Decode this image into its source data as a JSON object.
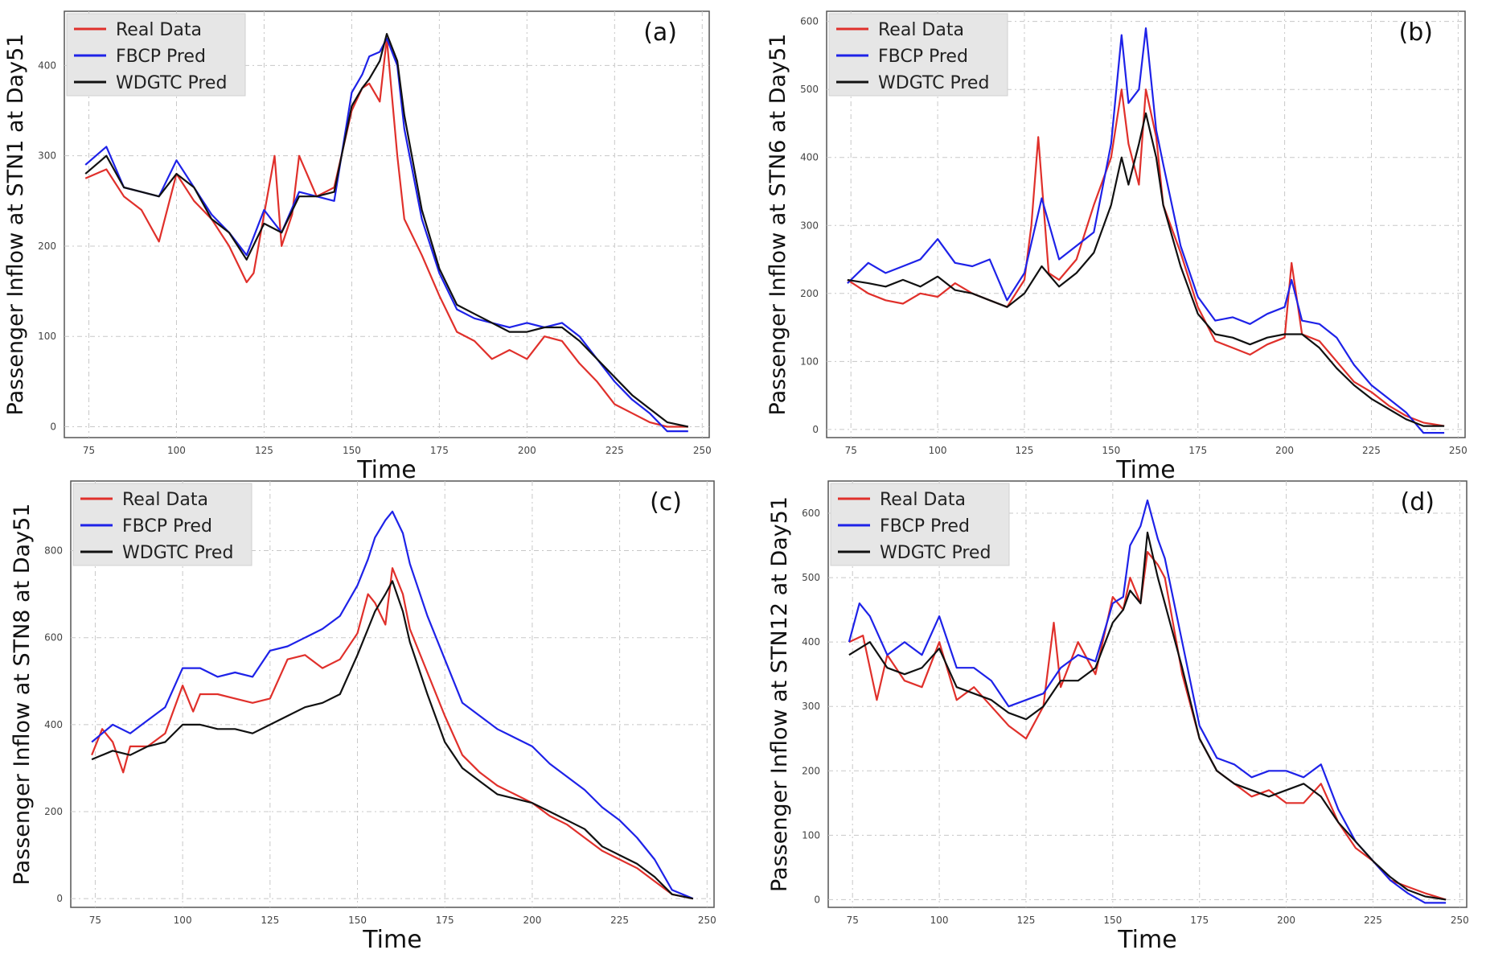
{
  "colors": {
    "real": "#e0302b",
    "fbcp": "#1e22e8",
    "wdgtc": "#111111",
    "grid": "#c8c8c8",
    "legend_bg": "#e6e6e6"
  },
  "chart_data": [
    {
      "type": "line",
      "panel_label": "(a)",
      "xlabel": "Time",
      "ylabel": "Passenger Inflow at STN1 at Day51",
      "xlim": [
        68,
        252
      ],
      "ylim": [
        -12,
        460
      ],
      "xticks": [
        75,
        100,
        125,
        150,
        175,
        200,
        225,
        250
      ],
      "yticks": [
        0,
        100,
        200,
        300,
        400
      ],
      "legend": [
        "Real Data",
        "FBCP Pred",
        "WDGTC Pred"
      ],
      "series": [
        {
          "name": "Real Data",
          "color_key": "real",
          "x": [
            74,
            80,
            85,
            90,
            95,
            100,
            105,
            110,
            115,
            120,
            122,
            125,
            128,
            130,
            133,
            135,
            140,
            145,
            150,
            153,
            155,
            158,
            160,
            163,
            165,
            170,
            175,
            180,
            185,
            190,
            195,
            200,
            205,
            210,
            215,
            220,
            225,
            230,
            235,
            240,
            246
          ],
          "y": [
            275,
            285,
            255,
            240,
            205,
            280,
            250,
            230,
            200,
            160,
            170,
            235,
            300,
            200,
            235,
            300,
            255,
            265,
            350,
            375,
            380,
            360,
            430,
            300,
            230,
            190,
            145,
            105,
            95,
            75,
            85,
            75,
            100,
            95,
            70,
            50,
            25,
            15,
            5,
            0,
            0
          ]
        },
        {
          "name": "FBCP Pred",
          "color_key": "fbcp",
          "x": [
            74,
            80,
            85,
            90,
            95,
            100,
            105,
            110,
            115,
            120,
            125,
            130,
            135,
            140,
            145,
            150,
            153,
            155,
            158,
            160,
            163,
            165,
            170,
            175,
            180,
            185,
            190,
            195,
            200,
            205,
            210,
            215,
            220,
            225,
            230,
            235,
            240,
            246
          ],
          "y": [
            290,
            310,
            265,
            260,
            255,
            295,
            265,
            235,
            215,
            190,
            240,
            215,
            260,
            255,
            250,
            370,
            390,
            410,
            415,
            430,
            400,
            330,
            230,
            170,
            130,
            120,
            115,
            110,
            115,
            110,
            115,
            100,
            75,
            50,
            30,
            15,
            -5,
            -5
          ]
        },
        {
          "name": "WDGTC Pred",
          "color_key": "wdgtc",
          "x": [
            74,
            80,
            85,
            90,
            95,
            100,
            105,
            110,
            115,
            120,
            125,
            130,
            135,
            140,
            145,
            150,
            153,
            155,
            158,
            160,
            163,
            165,
            170,
            175,
            180,
            185,
            190,
            195,
            200,
            205,
            210,
            215,
            220,
            225,
            230,
            235,
            240,
            246
          ],
          "y": [
            280,
            300,
            265,
            260,
            255,
            280,
            265,
            230,
            215,
            185,
            225,
            215,
            255,
            255,
            260,
            355,
            375,
            385,
            405,
            435,
            405,
            345,
            240,
            175,
            135,
            125,
            115,
            105,
            105,
            110,
            110,
            95,
            75,
            55,
            35,
            20,
            5,
            0
          ]
        }
      ]
    },
    {
      "type": "line",
      "panel_label": "(b)",
      "xlabel": "Time",
      "ylabel": "Passenger Inflow at STN6 at Day51",
      "xlim": [
        68,
        252
      ],
      "ylim": [
        -12,
        615
      ],
      "xticks": [
        75,
        100,
        125,
        150,
        175,
        200,
        225,
        250
      ],
      "yticks": [
        0,
        100,
        200,
        300,
        400,
        500,
        600
      ],
      "legend": [
        "Real Data",
        "FBCP Pred",
        "WDGTC Pred"
      ],
      "series": [
        {
          "name": "Real Data",
          "color_key": "real",
          "x": [
            74,
            80,
            85,
            90,
            95,
            100,
            105,
            110,
            115,
            120,
            125,
            127,
            129,
            132,
            135,
            140,
            145,
            150,
            153,
            155,
            158,
            160,
            163,
            165,
            170,
            175,
            180,
            185,
            190,
            195,
            200,
            202,
            205,
            210,
            215,
            220,
            225,
            230,
            235,
            240,
            246
          ],
          "y": [
            220,
            200,
            190,
            185,
            200,
            195,
            215,
            200,
            190,
            180,
            220,
            300,
            430,
            230,
            220,
            250,
            330,
            400,
            500,
            420,
            360,
            500,
            430,
            330,
            260,
            180,
            130,
            120,
            110,
            125,
            135,
            245,
            140,
            130,
            100,
            70,
            55,
            35,
            20,
            10,
            5
          ]
        },
        {
          "name": "FBCP Pred",
          "color_key": "fbcp",
          "x": [
            74,
            80,
            85,
            90,
            95,
            100,
            105,
            110,
            115,
            120,
            125,
            130,
            135,
            140,
            145,
            150,
            153,
            155,
            158,
            160,
            163,
            165,
            170,
            175,
            180,
            185,
            190,
            195,
            200,
            202,
            205,
            210,
            215,
            220,
            225,
            230,
            235,
            240,
            246
          ],
          "y": [
            215,
            245,
            230,
            240,
            250,
            280,
            245,
            240,
            250,
            190,
            230,
            340,
            250,
            270,
            290,
            420,
            580,
            480,
            500,
            590,
            440,
            390,
            270,
            195,
            160,
            165,
            155,
            170,
            180,
            220,
            160,
            155,
            135,
            95,
            65,
            45,
            25,
            -5,
            -5
          ]
        },
        {
          "name": "WDGTC Pred",
          "color_key": "wdgtc",
          "x": [
            74,
            80,
            85,
            90,
            95,
            100,
            105,
            110,
            115,
            120,
            125,
            130,
            135,
            140,
            145,
            150,
            153,
            155,
            158,
            160,
            163,
            165,
            170,
            175,
            180,
            185,
            190,
            195,
            200,
            205,
            210,
            215,
            220,
            225,
            230,
            235,
            240,
            246
          ],
          "y": [
            220,
            215,
            210,
            220,
            210,
            225,
            205,
            200,
            190,
            180,
            200,
            240,
            210,
            230,
            260,
            330,
            400,
            360,
            420,
            465,
            400,
            330,
            240,
            170,
            140,
            135,
            125,
            135,
            140,
            140,
            120,
            90,
            65,
            45,
            30,
            15,
            5,
            5
          ]
        }
      ]
    },
    {
      "type": "line",
      "panel_label": "(c)",
      "xlabel": "Time",
      "ylabel": "Passenger Inflow at STN8 at Day51",
      "xlim": [
        68,
        252
      ],
      "ylim": [
        -20,
        960
      ],
      "xticks": [
        75,
        100,
        125,
        150,
        175,
        200,
        225,
        250
      ],
      "yticks": [
        0,
        200,
        400,
        600,
        800
      ],
      "legend": [
        "Real Data",
        "FBCP Pred",
        "WDGTC Pred"
      ],
      "series": [
        {
          "name": "Real Data",
          "color_key": "real",
          "x": [
            74,
            77,
            80,
            83,
            85,
            90,
            95,
            100,
            103,
            105,
            110,
            115,
            120,
            125,
            130,
            135,
            140,
            145,
            150,
            153,
            155,
            158,
            160,
            163,
            165,
            170,
            175,
            180,
            185,
            190,
            195,
            200,
            205,
            210,
            215,
            220,
            225,
            230,
            235,
            240,
            246
          ],
          "y": [
            330,
            390,
            360,
            290,
            350,
            350,
            380,
            490,
            430,
            470,
            470,
            460,
            450,
            460,
            550,
            560,
            530,
            550,
            610,
            700,
            680,
            630,
            760,
            700,
            620,
            520,
            420,
            330,
            290,
            260,
            240,
            220,
            190,
            170,
            140,
            110,
            90,
            70,
            40,
            10,
            0
          ]
        },
        {
          "name": "FBCP Pred",
          "color_key": "fbcp",
          "x": [
            74,
            80,
            85,
            90,
            95,
            100,
            105,
            110,
            115,
            120,
            125,
            130,
            135,
            140,
            145,
            150,
            153,
            155,
            158,
            160,
            163,
            165,
            170,
            175,
            180,
            185,
            190,
            195,
            200,
            205,
            210,
            215,
            220,
            225,
            230,
            235,
            240,
            246
          ],
          "y": [
            360,
            400,
            380,
            410,
            440,
            530,
            530,
            510,
            520,
            510,
            570,
            580,
            600,
            620,
            650,
            720,
            780,
            830,
            870,
            890,
            840,
            770,
            650,
            550,
            450,
            420,
            390,
            370,
            350,
            310,
            280,
            250,
            210,
            180,
            140,
            90,
            20,
            0
          ]
        },
        {
          "name": "WDGTC Pred",
          "color_key": "wdgtc",
          "x": [
            74,
            80,
            85,
            90,
            95,
            100,
            105,
            110,
            115,
            120,
            125,
            130,
            135,
            140,
            145,
            150,
            153,
            155,
            158,
            160,
            163,
            165,
            170,
            175,
            180,
            185,
            190,
            195,
            200,
            205,
            210,
            215,
            220,
            225,
            230,
            235,
            240,
            246
          ],
          "y": [
            320,
            340,
            330,
            350,
            360,
            400,
            400,
            390,
            390,
            380,
            400,
            420,
            440,
            450,
            470,
            560,
            620,
            660,
            700,
            730,
            660,
            590,
            470,
            360,
            300,
            270,
            240,
            230,
            220,
            200,
            180,
            160,
            120,
            100,
            80,
            50,
            10,
            0
          ]
        }
      ]
    },
    {
      "type": "line",
      "panel_label": "(d)",
      "xlabel": "Time",
      "ylabel": "Passenger Inflow at STN12 at Day51",
      "xlim": [
        68,
        252
      ],
      "ylim": [
        -12,
        650
      ],
      "xticks": [
        75,
        100,
        125,
        150,
        175,
        200,
        225,
        250
      ],
      "yticks": [
        0,
        100,
        200,
        300,
        400,
        500,
        600
      ],
      "legend": [
        "Real Data",
        "FBCP Pred",
        "WDGTC Pred"
      ],
      "series": [
        {
          "name": "Real Data",
          "color_key": "real",
          "x": [
            74,
            78,
            82,
            85,
            90,
            95,
            100,
            105,
            110,
            115,
            120,
            125,
            130,
            133,
            135,
            140,
            145,
            150,
            153,
            155,
            158,
            160,
            163,
            165,
            170,
            175,
            180,
            185,
            190,
            195,
            200,
            205,
            210,
            215,
            220,
            225,
            230,
            235,
            240,
            246
          ],
          "y": [
            400,
            410,
            310,
            380,
            340,
            330,
            400,
            310,
            330,
            300,
            270,
            250,
            300,
            430,
            330,
            400,
            350,
            470,
            450,
            500,
            460,
            540,
            520,
            500,
            350,
            250,
            200,
            180,
            160,
            170,
            150,
            150,
            180,
            120,
            80,
            60,
            30,
            20,
            10,
            0
          ]
        },
        {
          "name": "FBCP Pred",
          "color_key": "fbcp",
          "x": [
            74,
            77,
            80,
            85,
            90,
            95,
            100,
            105,
            110,
            115,
            120,
            125,
            130,
            135,
            140,
            145,
            150,
            153,
            155,
            158,
            160,
            163,
            165,
            170,
            175,
            180,
            185,
            190,
            195,
            200,
            205,
            210,
            215,
            220,
            225,
            230,
            235,
            240,
            246
          ],
          "y": [
            400,
            460,
            440,
            380,
            400,
            380,
            440,
            360,
            360,
            340,
            300,
            310,
            320,
            360,
            380,
            370,
            460,
            470,
            550,
            580,
            620,
            560,
            530,
            400,
            270,
            220,
            210,
            190,
            200,
            200,
            190,
            210,
            140,
            90,
            60,
            30,
            10,
            -5,
            -5
          ]
        },
        {
          "name": "WDGTC Pred",
          "color_key": "wdgtc",
          "x": [
            74,
            80,
            85,
            90,
            95,
            100,
            105,
            110,
            115,
            120,
            125,
            130,
            135,
            140,
            145,
            150,
            153,
            155,
            158,
            160,
            163,
            165,
            170,
            175,
            180,
            185,
            190,
            195,
            200,
            205,
            210,
            215,
            220,
            225,
            230,
            235,
            240,
            246
          ],
          "y": [
            380,
            400,
            360,
            350,
            360,
            390,
            330,
            320,
            310,
            290,
            280,
            300,
            340,
            340,
            360,
            430,
            450,
            480,
            460,
            570,
            500,
            460,
            360,
            250,
            200,
            180,
            170,
            160,
            170,
            180,
            160,
            120,
            90,
            60,
            35,
            15,
            5,
            0
          ]
        }
      ]
    }
  ]
}
